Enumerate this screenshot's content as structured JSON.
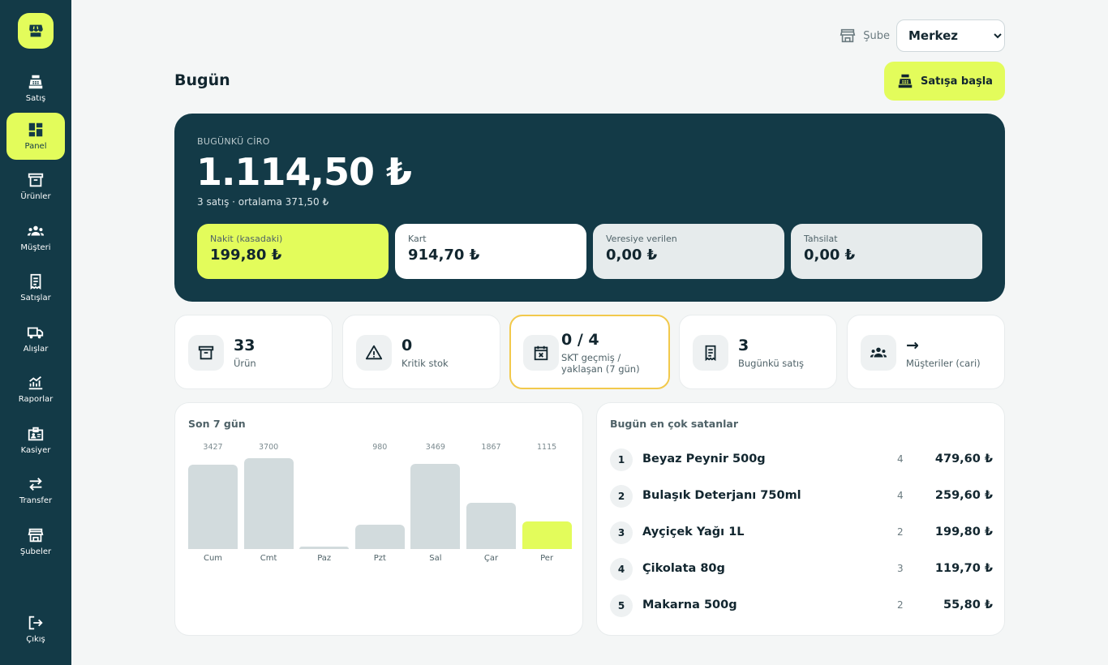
{
  "sidebar": {
    "items": [
      {
        "label": "Satış",
        "icon": "cash-register-icon"
      },
      {
        "label": "Panel",
        "icon": "dashboard-icon",
        "active": true
      },
      {
        "label": "Ürünler",
        "icon": "archive-box-icon"
      },
      {
        "label": "Müşteri",
        "icon": "people-icon"
      },
      {
        "label": "Satışlar",
        "icon": "receipt-icon"
      },
      {
        "label": "Alışlar",
        "icon": "truck-icon"
      },
      {
        "label": "Raporlar",
        "icon": "analytics-icon"
      },
      {
        "label": "Kasiyer",
        "icon": "badge-icon"
      },
      {
        "label": "Transfer",
        "icon": "swap-arrows-icon"
      },
      {
        "label": "Şubeler",
        "icon": "storefront-icon"
      }
    ],
    "logout": {
      "label": "Çıkış",
      "icon": "logout-icon"
    }
  },
  "header": {
    "branch_label": "Şube",
    "branch_value": "Merkez",
    "title": "Bugün",
    "start_sale": "Satışa başla"
  },
  "hero": {
    "label": "BUGÜNKÜ CİRO",
    "value": "1.114,50 ₺",
    "sub": "3 satış · ortalama 371,50 ₺",
    "payments": [
      {
        "label": "Nakit (kasadaki)",
        "value": "199,80 ₺"
      },
      {
        "label": "Kart",
        "value": "914,70 ₺"
      },
      {
        "label": "Veresiye verilen",
        "value": "0,00 ₺"
      },
      {
        "label": "Tahsilat",
        "value": "0,00 ₺"
      }
    ]
  },
  "stats": [
    {
      "value": "33",
      "label": "Ürün",
      "icon": "archive-box-icon"
    },
    {
      "value": "0",
      "label": "Kritik stok",
      "icon": "warning-icon"
    },
    {
      "value": "0 / 4",
      "label": "SKT geçmiş / yaklaşan (7 gün)",
      "icon": "event-busy-icon"
    },
    {
      "value": "3",
      "label": "Bugünkü satış",
      "icon": "receipt-icon"
    },
    {
      "value": "→",
      "label": "Müşteriler (cari)",
      "icon": "people-icon"
    }
  ],
  "chart_panel_title": "Son 7 gün",
  "chart_data": {
    "type": "bar",
    "categories": [
      "Cum",
      "Cmt",
      "Paz",
      "Pzt",
      "Sal",
      "Çar",
      "Per"
    ],
    "values": [
      3427,
      3700,
      0,
      980,
      3469,
      1867,
      1115
    ],
    "value_labels": [
      "3427",
      "3700",
      "",
      "980",
      "3469",
      "1867",
      "1115"
    ],
    "highlight_index": 6,
    "ylim": [
      0,
      3700
    ],
    "colors": {
      "default": "#d2dbdd",
      "highlight": "#e3fc5b"
    },
    "grid": false
  },
  "top_sellers": {
    "title": "Bugün en çok satanlar",
    "rows": [
      {
        "rank": "1",
        "name": "Beyaz Peynir 500g",
        "qty": "4",
        "amount": "479,60 ₺"
      },
      {
        "rank": "2",
        "name": "Bulaşık Deterjanı 750ml",
        "qty": "4",
        "amount": "259,60 ₺"
      },
      {
        "rank": "3",
        "name": "Ayçiçek Yağı 1L",
        "qty": "2",
        "amount": "199,80 ₺"
      },
      {
        "rank": "4",
        "name": "Çikolata 80g",
        "qty": "3",
        "amount": "119,70 ₺"
      },
      {
        "rank": "5",
        "name": "Makarna 500g",
        "qty": "2",
        "amount": "55,80 ₺"
      }
    ]
  },
  "colors": {
    "sidebar": "#133a47",
    "accent": "#e3fc5b",
    "warning": "#f2c94c"
  }
}
